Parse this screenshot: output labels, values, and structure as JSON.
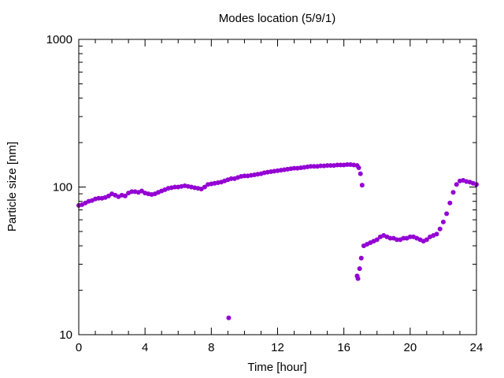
{
  "chart_data": {
    "type": "scatter",
    "title": "Modes location (5/9/1)",
    "xlabel": "Time [hour]",
    "ylabel": "Particle size [nm]",
    "xlim": [
      0,
      24
    ],
    "ylim": [
      10,
      1000
    ],
    "yscale": "log",
    "grid": false,
    "legend": "none",
    "xticks": [
      0,
      4,
      8,
      12,
      16,
      20,
      24
    ],
    "yticks": [
      10,
      100,
      1000
    ],
    "xtick_labels": [
      "0",
      "4",
      "8",
      "12",
      "16",
      "20",
      "24"
    ],
    "ytick_labels": [
      "10",
      "100",
      "1000"
    ],
    "marker_color": "#9400d3",
    "series": [
      {
        "x": [
          0.0,
          0.2,
          0.4,
          0.6,
          0.8,
          1.0,
          1.2,
          1.4,
          1.6,
          1.8,
          2.0,
          2.2,
          2.4,
          2.6,
          2.8,
          3.0,
          3.2,
          3.4,
          3.6,
          3.8,
          4.0,
          4.2,
          4.4,
          4.6,
          4.8,
          5.0,
          5.2,
          5.4,
          5.6,
          5.8,
          6.0,
          6.2,
          6.4,
          6.6,
          6.8,
          7.0,
          7.2,
          7.4,
          7.6,
          7.8,
          8.0,
          8.2,
          8.4,
          8.6,
          8.8,
          9.0,
          9.2,
          9.4,
          9.6,
          9.8,
          10.0,
          10.2,
          10.4,
          10.6,
          10.8,
          11.0,
          11.2,
          11.4,
          11.6,
          11.8,
          12.0,
          12.2,
          12.4,
          12.6,
          12.8,
          13.0,
          13.2,
          13.4,
          13.6,
          13.8,
          14.0,
          14.2,
          14.4,
          14.6,
          14.8,
          15.0,
          15.2,
          15.4,
          15.6,
          15.8,
          16.0,
          16.2,
          16.4,
          16.6,
          16.8,
          16.9,
          17.0,
          17.1,
          16.8,
          16.85,
          16.95,
          17.05,
          17.2,
          17.4,
          17.6,
          17.8,
          18.0,
          18.2,
          18.4,
          18.6,
          18.8,
          19.0,
          19.2,
          19.4,
          19.6,
          19.8,
          20.0,
          20.2,
          20.4,
          20.6,
          20.8,
          21.0,
          21.2,
          21.4,
          21.6,
          21.8,
          22.0,
          22.2,
          22.4,
          22.6,
          22.8,
          23.0,
          23.2,
          23.4,
          23.6,
          23.8,
          24.0,
          9.05
        ],
        "y": [
          75,
          76,
          78,
          80,
          81,
          83,
          84,
          84,
          85,
          87,
          90,
          88,
          86,
          88,
          87,
          91,
          93,
          93,
          92,
          94,
          91,
          90,
          89,
          90,
          92,
          94,
          96,
          98,
          99,
          100,
          100,
          101,
          102,
          101,
          100,
          99,
          98,
          97,
          100,
          104,
          105,
          106,
          107,
          108,
          110,
          112,
          114,
          114,
          116,
          118,
          119,
          119,
          120,
          121,
          122,
          123,
          125,
          126,
          127,
          128,
          129,
          130,
          131,
          132,
          133,
          134,
          134,
          135,
          136,
          137,
          138,
          138,
          138,
          139,
          139,
          140,
          140,
          140,
          141,
          141,
          141,
          142,
          142,
          141,
          140,
          135,
          123,
          103,
          25,
          24,
          28,
          33,
          40,
          41,
          42,
          43,
          44,
          46,
          47,
          46,
          45,
          45,
          44,
          44,
          45,
          45,
          46,
          46,
          45,
          44,
          43,
          44,
          46,
          47,
          48,
          52,
          58,
          66,
          78,
          92,
          104,
          110,
          111,
          109,
          108,
          106,
          104,
          13
        ]
      }
    ]
  }
}
